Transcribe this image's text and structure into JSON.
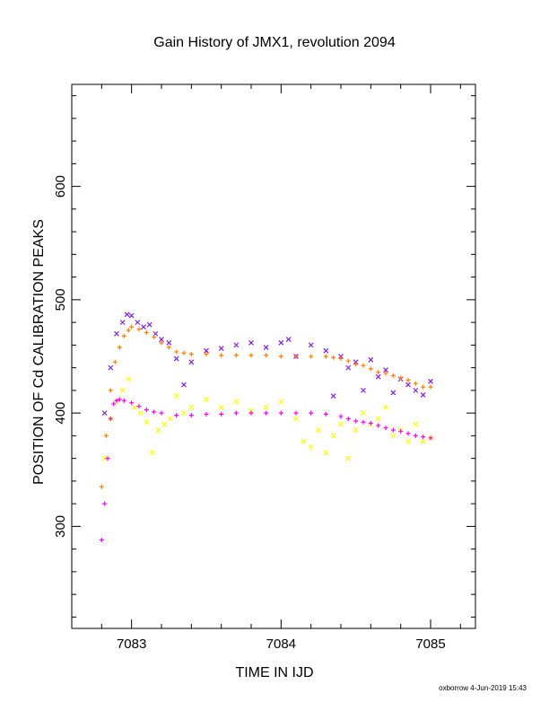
{
  "chart_data": {
    "type": "scatter",
    "title": "Gain History of JMX1, revolution 2094",
    "xlabel": "TIME IN IJD",
    "ylabel": "POSITION OF Cd CALIBRATION PEAKS",
    "xlim": [
      7082.6,
      7085.3
    ],
    "ylim": [
      210,
      690
    ],
    "xticks": [
      7083,
      7084,
      7085
    ],
    "yticks": [
      300,
      400,
      500,
      600
    ],
    "grid": false,
    "legend": "none",
    "series": [
      {
        "marker": "x",
        "color": "#7f1fe0",
        "x": [
          7082.82,
          7082.86,
          7082.9,
          7082.94,
          7082.97,
          7083.0,
          7083.04,
          7083.08,
          7083.12,
          7083.16,
          7083.2,
          7083.25,
          7083.3,
          7083.35,
          7083.4,
          7083.5,
          7083.6,
          7083.7,
          7083.8,
          7083.9,
          7084.0,
          7084.05,
          7084.1,
          7084.2,
          7084.3,
          7084.35,
          7084.4,
          7084.45,
          7084.5,
          7084.55,
          7084.6,
          7084.65,
          7084.7,
          7084.75,
          7084.8,
          7084.85,
          7084.9,
          7084.95,
          7085.0
        ],
        "y": [
          400,
          440,
          470,
          480,
          487,
          486,
          480,
          476,
          478,
          470,
          465,
          462,
          448,
          425,
          445,
          455,
          457,
          460,
          462,
          458,
          462,
          465,
          450,
          460,
          455,
          415,
          450,
          440,
          445,
          420,
          447,
          432,
          438,
          418,
          430,
          425,
          420,
          416,
          428
        ]
      },
      {
        "marker": "+",
        "color": "#ff7f00",
        "x": [
          7082.8,
          7082.83,
          7082.86,
          7082.89,
          7082.92,
          7082.95,
          7082.98,
          7083.0,
          7083.05,
          7083.1,
          7083.15,
          7083.2,
          7083.25,
          7083.3,
          7083.35,
          7083.4,
          7083.5,
          7083.6,
          7083.7,
          7083.8,
          7083.9,
          7084.0,
          7084.1,
          7084.2,
          7084.3,
          7084.35,
          7084.4,
          7084.45,
          7084.5,
          7084.55,
          7084.6,
          7084.65,
          7084.7,
          7084.75,
          7084.8,
          7084.85,
          7084.9,
          7084.95,
          7085.0
        ],
        "y": [
          335,
          380,
          420,
          445,
          458,
          468,
          473,
          476,
          474,
          471,
          467,
          462,
          458,
          454,
          453,
          452,
          452,
          451,
          451,
          451,
          451,
          450,
          450,
          450,
          450,
          449,
          448,
          446,
          443,
          442,
          439,
          436,
          435,
          433,
          431,
          429,
          426,
          423,
          423
        ]
      },
      {
        "marker": "x",
        "color": "#ffff00",
        "x": [
          7082.82,
          7082.86,
          7082.9,
          7082.94,
          7082.98,
          7083.02,
          7083.06,
          7083.1,
          7083.14,
          7083.18,
          7083.22,
          7083.26,
          7083.3,
          7083.35,
          7083.4,
          7083.5,
          7083.6,
          7083.7,
          7083.8,
          7083.9,
          7084.0,
          7084.1,
          7084.15,
          7084.2,
          7084.25,
          7084.3,
          7084.35,
          7084.4,
          7084.45,
          7084.5,
          7084.55,
          7084.6,
          7084.65,
          7084.7,
          7084.75,
          7084.8,
          7084.85,
          7084.9,
          7084.95,
          7085.0
        ],
        "y": [
          360,
          395,
          410,
          420,
          430,
          405,
          400,
          392,
          365,
          385,
          390,
          395,
          415,
          400,
          405,
          412,
          405,
          410,
          402,
          405,
          410,
          395,
          375,
          370,
          385,
          365,
          380,
          390,
          360,
          385,
          400,
          390,
          395,
          405,
          380,
          385,
          375,
          390,
          375,
          378
        ]
      },
      {
        "marker": "+",
        "color": "#ff00ff",
        "x": [
          7082.8,
          7082.82,
          7082.84,
          7082.86,
          7082.88,
          7082.9,
          7082.92,
          7082.95,
          7083.0,
          7083.05,
          7083.1,
          7083.15,
          7083.2,
          7083.3,
          7083.4,
          7083.5,
          7083.6,
          7083.7,
          7083.8,
          7083.9,
          7084.0,
          7084.1,
          7084.2,
          7084.3,
          7084.4,
          7084.45,
          7084.5,
          7084.55,
          7084.6,
          7084.65,
          7084.7,
          7084.75,
          7084.8,
          7084.85,
          7084.9,
          7084.95,
          7085.0
        ],
        "y": [
          288,
          320,
          360,
          395,
          408,
          411,
          412,
          411,
          409,
          406,
          403,
          401,
          400,
          398,
          398,
          399,
          399,
          400,
          400,
          400,
          400,
          400,
          400,
          399,
          397,
          395,
          393,
          392,
          391,
          389,
          387,
          385,
          384,
          382,
          380,
          379,
          378
        ]
      }
    ],
    "footer": "oxborrow  4-Jun-2019 15:43"
  }
}
